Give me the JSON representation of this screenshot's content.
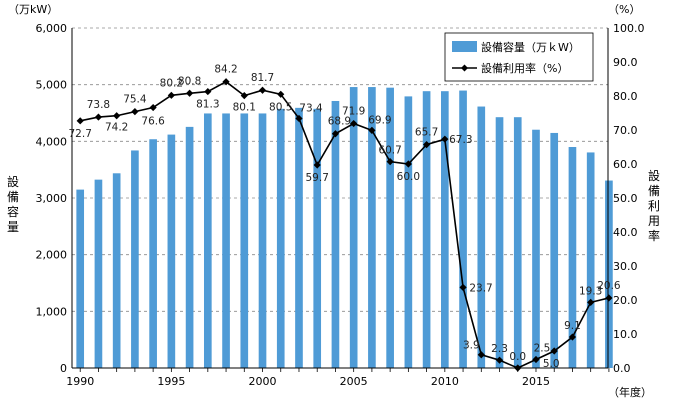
{
  "chart_data": {
    "type": "bar+line",
    "x": [
      1990,
      1991,
      1992,
      1993,
      1994,
      1995,
      1996,
      1997,
      1998,
      1999,
      2000,
      2001,
      2002,
      2003,
      2004,
      2005,
      2006,
      2007,
      2008,
      2009,
      2010,
      2011,
      2012,
      2013,
      2014,
      2015,
      2016,
      2017,
      2018,
      2019
    ],
    "x_ticks": [
      "1990",
      "1995",
      "2000",
      "2005",
      "2010",
      "2015"
    ],
    "series": [
      {
        "name": "設備容量（万ｋW）",
        "kind": "bar",
        "axis": "left",
        "color": "#4f9bd6",
        "values": [
          3148,
          3324,
          3436,
          3839,
          4037,
          4119,
          4255,
          4492,
          4492,
          4492,
          4492,
          4574,
          4591,
          4574,
          4712,
          4958,
          4958,
          4947,
          4793,
          4885,
          4885,
          4896,
          4614,
          4426,
          4426,
          4205,
          4148,
          3900,
          3804,
          3308
        ]
      },
      {
        "name": "設備利用率（%）",
        "kind": "line",
        "axis": "right",
        "color": "#000000",
        "values": [
          72.7,
          73.8,
          74.2,
          75.4,
          76.6,
          80.2,
          80.8,
          81.3,
          84.2,
          80.1,
          81.7,
          80.5,
          73.4,
          59.7,
          68.9,
          71.9,
          69.9,
          60.7,
          60.0,
          65.7,
          67.3,
          23.7,
          3.9,
          2.3,
          0.0,
          2.5,
          5.0,
          9.1,
          19.3,
          20.6
        ],
        "labels": [
          "72.7",
          "73.8",
          "74.2",
          "75.4",
          "76.6",
          "80.2",
          "80.8",
          "81.3",
          "84.2",
          "80.1",
          "81.7",
          "80.5",
          "73.4",
          "59.7",
          "68.9",
          "71.9",
          "69.9",
          "60.7",
          "60.0",
          "65.7",
          "67.3",
          "23.7",
          "3.9",
          "2.3",
          "0.0",
          "2.5",
          "5.0",
          "9.1",
          "19.3",
          "20.6"
        ]
      }
    ],
    "y_left": {
      "unit_label": "（万kW）",
      "title": "設備容量",
      "ylim": [
        0,
        6000
      ],
      "ticks": [
        0,
        1000,
        2000,
        3000,
        4000,
        5000,
        6000
      ],
      "tick_labels": [
        "0",
        "1,000",
        "2,000",
        "3,000",
        "4,000",
        "5,000",
        "6,000"
      ]
    },
    "y_right": {
      "unit_label": "（%）",
      "title": "設備利用率",
      "ylim": [
        0,
        100
      ],
      "ticks": [
        0,
        10,
        20,
        30,
        40,
        50,
        60,
        70,
        80,
        90,
        100
      ],
      "tick_labels": [
        "0.0",
        "10.0",
        "20.0",
        "30.0",
        "40.0",
        "50.0",
        "60.0",
        "70.0",
        "80.0",
        "90.0",
        "100.0"
      ]
    },
    "x_unit_label": "（年度）",
    "grid": "horizontal-dashed",
    "legend_position": "top-right"
  }
}
